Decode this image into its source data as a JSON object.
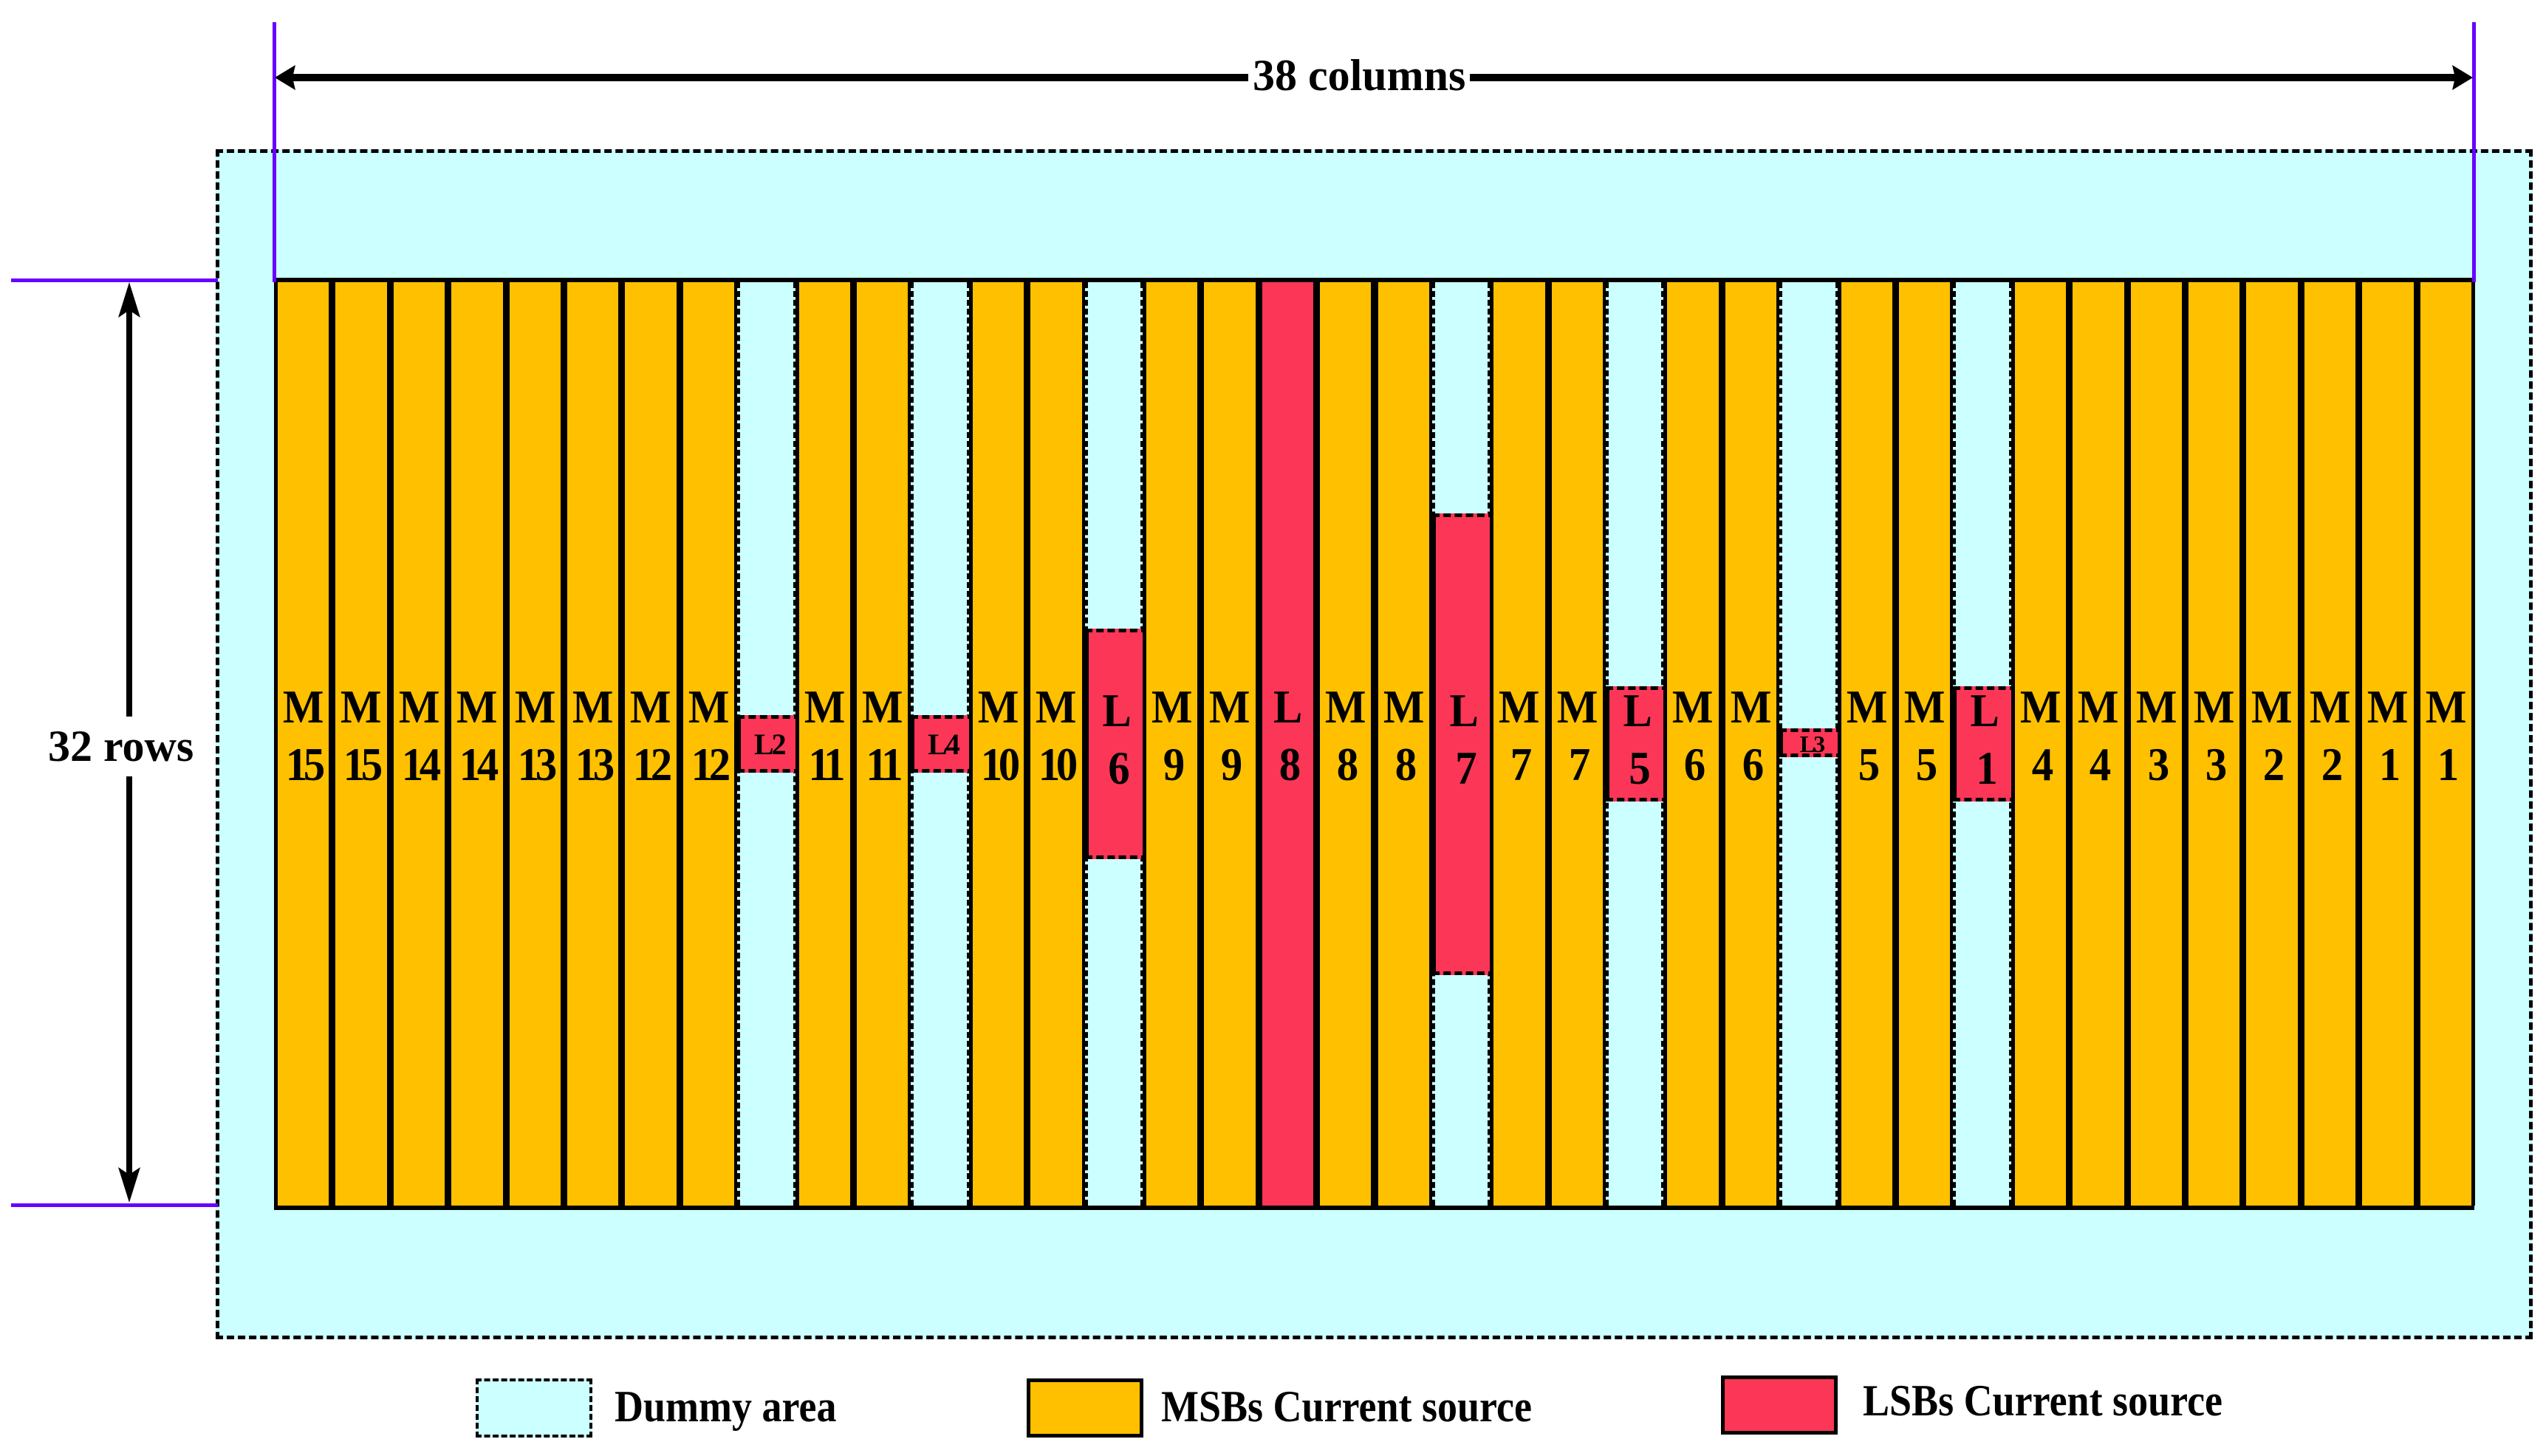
{
  "diagram": {
    "title_columns": "38 columns",
    "title_rows": "32 rows",
    "grid": {
      "columns": 38,
      "rows": 32
    },
    "colors": {
      "dummy": "#ccffff",
      "msb": "#ffc000",
      "lsb": "#fb3656",
      "guide": "#6600ff",
      "outline": "#000000"
    },
    "columns": [
      {
        "type": "msb",
        "l1": "M",
        "l2": "15"
      },
      {
        "type": "msb",
        "l1": "M",
        "l2": "15"
      },
      {
        "type": "msb",
        "l1": "M",
        "l2": "14"
      },
      {
        "type": "msb",
        "l1": "M",
        "l2": "14"
      },
      {
        "type": "msb",
        "l1": "M",
        "l2": "13"
      },
      {
        "type": "msb",
        "l1": "M",
        "l2": "13"
      },
      {
        "type": "msb",
        "l1": "M",
        "l2": "12"
      },
      {
        "type": "msb",
        "l1": "M",
        "l2": "12"
      },
      {
        "type": "lsb",
        "label": "L2",
        "rows": 2,
        "compact": true
      },
      {
        "type": "msb",
        "l1": "M",
        "l2": "11"
      },
      {
        "type": "msb",
        "l1": "M",
        "l2": "11"
      },
      {
        "type": "lsb",
        "label": "L4",
        "rows": 2,
        "compact": true
      },
      {
        "type": "msb",
        "l1": "M",
        "l2": "10"
      },
      {
        "type": "msb",
        "l1": "M",
        "l2": "10"
      },
      {
        "type": "lsb",
        "l1": "L",
        "l2": "6",
        "rows": 8
      },
      {
        "type": "msb",
        "l1": "M",
        "l2": "9"
      },
      {
        "type": "msb",
        "l1": "M",
        "l2": "9"
      },
      {
        "type": "lsb",
        "l1": "L",
        "l2": "8",
        "rows": 32
      },
      {
        "type": "msb",
        "l1": "M",
        "l2": "8"
      },
      {
        "type": "msb",
        "l1": "M",
        "l2": "8"
      },
      {
        "type": "lsb",
        "l1": "L",
        "l2": "7",
        "rows": 16
      },
      {
        "type": "msb",
        "l1": "M",
        "l2": "7"
      },
      {
        "type": "msb",
        "l1": "M",
        "l2": "7"
      },
      {
        "type": "lsb",
        "l1": "L",
        "l2": "5",
        "rows": 4
      },
      {
        "type": "msb",
        "l1": "M",
        "l2": "6"
      },
      {
        "type": "msb",
        "l1": "M",
        "l2": "6"
      },
      {
        "type": "lsb",
        "label": "L3",
        "rows": 1,
        "compact": true
      },
      {
        "type": "msb",
        "l1": "M",
        "l2": "5"
      },
      {
        "type": "msb",
        "l1": "M",
        "l2": "5"
      },
      {
        "type": "lsb",
        "l1": "L",
        "l2": "1",
        "rows": 4
      },
      {
        "type": "msb",
        "l1": "M",
        "l2": "4"
      },
      {
        "type": "msb",
        "l1": "M",
        "l2": "4"
      },
      {
        "type": "msb",
        "l1": "M",
        "l2": "3"
      },
      {
        "type": "msb",
        "l1": "M",
        "l2": "3"
      },
      {
        "type": "msb",
        "l1": "M",
        "l2": "2"
      },
      {
        "type": "msb",
        "l1": "M",
        "l2": "2"
      },
      {
        "type": "msb",
        "l1": "M",
        "l2": "1"
      },
      {
        "type": "msb",
        "l1": "M",
        "l2": "1"
      }
    ]
  },
  "legend": [
    {
      "key": "dummy",
      "label": "Dummy area"
    },
    {
      "key": "msb",
      "label": "MSBs Current source"
    },
    {
      "key": "lsb",
      "label": "LSBs Current source"
    }
  ]
}
